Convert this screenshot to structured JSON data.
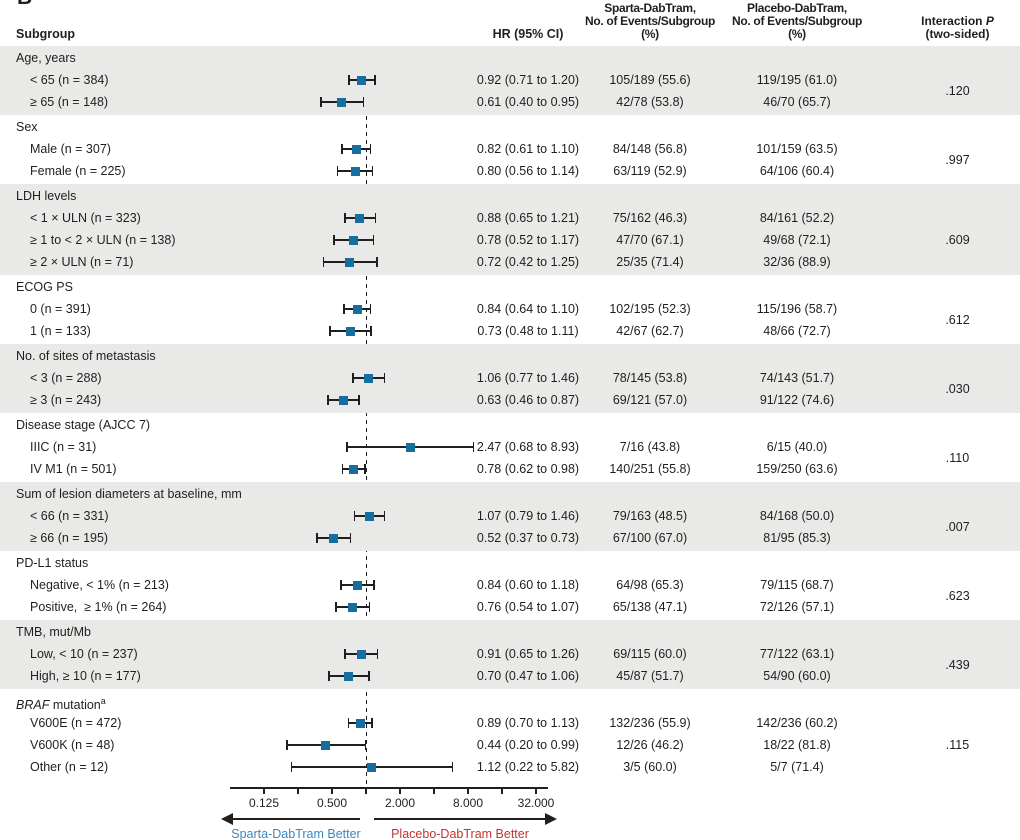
{
  "panel_label": "B",
  "header": {
    "subgroup": "Subgroup",
    "hr": "HR (95% CI)",
    "sparta_lines": [
      "Sparta-DabTram,",
      "No. of Events/Subgroup",
      "(%)"
    ],
    "placebo_lines": [
      "Placebo-DabTram,",
      "No. of Events/Subgroup",
      "(%)"
    ],
    "interaction_line1": "Interaction",
    "interaction_line1_italic": "P",
    "interaction_line2": "(two-sided)"
  },
  "chart_data": {
    "type": "scatter",
    "variant": "forest-plot",
    "x_scale": "log2",
    "x_axis": {
      "major_ticks": [
        0.125,
        0.5,
        2,
        8,
        32
      ],
      "major_tick_labels": [
        "0.125",
        "0.500",
        "2.000",
        "8.000",
        "32.000"
      ],
      "minor_ticks": [
        0.25,
        1,
        4,
        16
      ],
      "reference_line": 1,
      "xlim": [
        0.125,
        32
      ]
    },
    "sections": [
      {
        "label": "Age, years",
        "shaded": true,
        "interaction_p": ".120",
        "rows": [
          {
            "label": "< 65 (n = 384)",
            "hr": 0.92,
            "ci_low": 0.71,
            "ci_high": 1.2,
            "hr_text": "0.92 (0.71 to 1.20)",
            "sparta": "105/189 (55.6)",
            "placebo": "119/195 (61.0)"
          },
          {
            "label": "≥ 65 (n = 148)",
            "hr": 0.61,
            "ci_low": 0.4,
            "ci_high": 0.95,
            "hr_text": "0.61 (0.40 to 0.95)",
            "sparta": "42/78 (53.8)",
            "placebo": "46/70 (65.7)"
          }
        ]
      },
      {
        "label": "Sex",
        "shaded": false,
        "interaction_p": ".997",
        "rows": [
          {
            "label": "Male (n = 307)",
            "hr": 0.82,
            "ci_low": 0.61,
            "ci_high": 1.1,
            "hr_text": "0.82 (0.61 to 1.10)",
            "sparta": "84/148 (56.8)",
            "placebo": "101/159 (63.5)"
          },
          {
            "label": "Female (n = 225)",
            "hr": 0.8,
            "ci_low": 0.56,
            "ci_high": 1.14,
            "hr_text": "0.80 (0.56 to 1.14)",
            "sparta": "63/119 (52.9)",
            "placebo": "64/106 (60.4)"
          }
        ]
      },
      {
        "label": "LDH levels",
        "shaded": true,
        "interaction_p": ".609",
        "rows": [
          {
            "label": "< 1 × ULN (n = 323)",
            "hr": 0.88,
            "ci_low": 0.65,
            "ci_high": 1.21,
            "hr_text": "0.88 (0.65 to 1.21)",
            "sparta": "75/162 (46.3)",
            "placebo": "84/161 (52.2)"
          },
          {
            "label": "≥ 1 to < 2 × ULN (n = 138)",
            "hr": 0.78,
            "ci_low": 0.52,
            "ci_high": 1.17,
            "hr_text": "0.78 (0.52 to 1.17)",
            "sparta": "47/70 (67.1)",
            "placebo": "49/68 (72.1)"
          },
          {
            "label": "≥ 2 × ULN (n = 71)",
            "hr": 0.72,
            "ci_low": 0.42,
            "ci_high": 1.25,
            "hr_text": "0.72 (0.42 to 1.25)",
            "sparta": "25/35 (71.4)",
            "placebo": "32/36 (88.9)"
          }
        ]
      },
      {
        "label": "ECOG PS",
        "shaded": false,
        "interaction_p": ".612",
        "rows": [
          {
            "label": "0 (n = 391)",
            "hr": 0.84,
            "ci_low": 0.64,
            "ci_high": 1.1,
            "hr_text": "0.84 (0.64 to 1.10)",
            "sparta": "102/195 (52.3)",
            "placebo": "115/196 (58.7)"
          },
          {
            "label": "1 (n = 133)",
            "hr": 0.73,
            "ci_low": 0.48,
            "ci_high": 1.11,
            "hr_text": "0.73 (0.48 to 1.11)",
            "sparta": "42/67 (62.7)",
            "placebo": "48/66 (72.7)"
          }
        ]
      },
      {
        "label": "No. of sites of metastasis",
        "shaded": true,
        "interaction_p": ".030",
        "rows": [
          {
            "label": "< 3 (n = 288)",
            "hr": 1.06,
            "ci_low": 0.77,
            "ci_high": 1.46,
            "hr_text": "1.06 (0.77 to 1.46)",
            "sparta": "78/145 (53.8)",
            "placebo": "74/143 (51.7)"
          },
          {
            "label": "≥ 3 (n = 243)",
            "hr": 0.63,
            "ci_low": 0.46,
            "ci_high": 0.87,
            "hr_text": "0.63 (0.46 to 0.87)",
            "sparta": "69/121 (57.0)",
            "placebo": "91/122 (74.6)"
          }
        ]
      },
      {
        "label": "Disease stage (AJCC 7)",
        "shaded": false,
        "interaction_p": ".110",
        "rows": [
          {
            "label": "IIIC (n = 31)",
            "hr": 2.47,
            "ci_low": 0.68,
            "ci_high": 8.93,
            "hr_text": "2.47 (0.68 to 8.93)",
            "sparta": "7/16 (43.8)",
            "placebo": "6/15 (40.0)"
          },
          {
            "label": "IV M1 (n = 501)",
            "hr": 0.78,
            "ci_low": 0.62,
            "ci_high": 0.98,
            "hr_text": "0.78 (0.62 to 0.98)",
            "sparta": "140/251 (55.8)",
            "placebo": "159/250 (63.6)"
          }
        ]
      },
      {
        "label": "Sum of lesion diameters at baseline, mm",
        "shaded": true,
        "interaction_p": ".007",
        "rows": [
          {
            "label": "< 66 (n = 331)",
            "hr": 1.07,
            "ci_low": 0.79,
            "ci_high": 1.46,
            "hr_text": "1.07 (0.79 to 1.46)",
            "sparta": "79/163 (48.5)",
            "placebo": "84/168 (50.0)"
          },
          {
            "label": "≥ 66 (n = 195)",
            "hr": 0.52,
            "ci_low": 0.37,
            "ci_high": 0.73,
            "hr_text": "0.52 (0.37 to 0.73)",
            "sparta": "67/100 (67.0)",
            "placebo": "81/95 (85.3)"
          }
        ]
      },
      {
        "label": "PD-L1 status",
        "shaded": false,
        "interaction_p": ".623",
        "rows": [
          {
            "label": "Negative, < 1% (n = 213)",
            "hr": 0.84,
            "ci_low": 0.6,
            "ci_high": 1.18,
            "hr_text": "0.84 (0.60 to 1.18)",
            "sparta": "64/98 (65.3)",
            "placebo": "79/115 (68.7)"
          },
          {
            "label": "Positive,  ≥ 1% (n = 264)",
            "hr": 0.76,
            "ci_low": 0.54,
            "ci_high": 1.07,
            "hr_text": "0.76 (0.54 to 1.07)",
            "sparta": "65/138 (47.1)",
            "placebo": "72/126 (57.1)"
          }
        ]
      },
      {
        "label": "TMB, mut/Mb",
        "shaded": true,
        "interaction_p": ".439",
        "rows": [
          {
            "label": "Low, < 10 (n = 237)",
            "hr": 0.91,
            "ci_low": 0.65,
            "ci_high": 1.26,
            "hr_text": "0.91 (0.65 to 1.26)",
            "sparta": "69/115 (60.0)",
            "placebo": "77/122 (63.1)"
          },
          {
            "label": "High, ≥ 10 (n = 177)",
            "hr": 0.7,
            "ci_low": 0.47,
            "ci_high": 1.06,
            "hr_text": "0.70 (0.47 to 1.06)",
            "sparta": "45/87 (51.7)",
            "placebo": "54/90 (60.0)"
          }
        ]
      },
      {
        "label": " mutation",
        "label_italic_prefix": "BRAF",
        "label_superscript": "a",
        "shaded": false,
        "interaction_p": ".115",
        "rows": [
          {
            "label": "V600E (n = 472)",
            "hr": 0.89,
            "ci_low": 0.7,
            "ci_high": 1.13,
            "hr_text": "0.89 (0.70 to 1.13)",
            "sparta": "132/236 (55.9)",
            "placebo": "142/236 (60.2)"
          },
          {
            "label": "V600K (n = 48)",
            "hr": 0.44,
            "ci_low": 0.2,
            "ci_high": 0.99,
            "hr_text": "0.44 (0.20 to 0.99)",
            "sparta": "12/26 (46.2)",
            "placebo": "18/22 (81.8)"
          },
          {
            "label": "Other (n = 12)",
            "hr": 1.12,
            "ci_low": 0.22,
            "ci_high": 5.82,
            "hr_text": "1.12 (0.22 to 5.82)",
            "sparta": "3/5 (60.0)",
            "placebo": "5/7 (71.4)"
          }
        ]
      }
    ]
  },
  "footer": {
    "left_arrow_label": "Sparta-DabTram Better",
    "right_arrow_label": "Placebo-DabTram Better"
  },
  "colors": {
    "marker": "#146e9f",
    "band": "#e9e9e7",
    "left_label": "#3b87c2",
    "right_label": "#bf362e",
    "text": "#1f1f1f"
  }
}
